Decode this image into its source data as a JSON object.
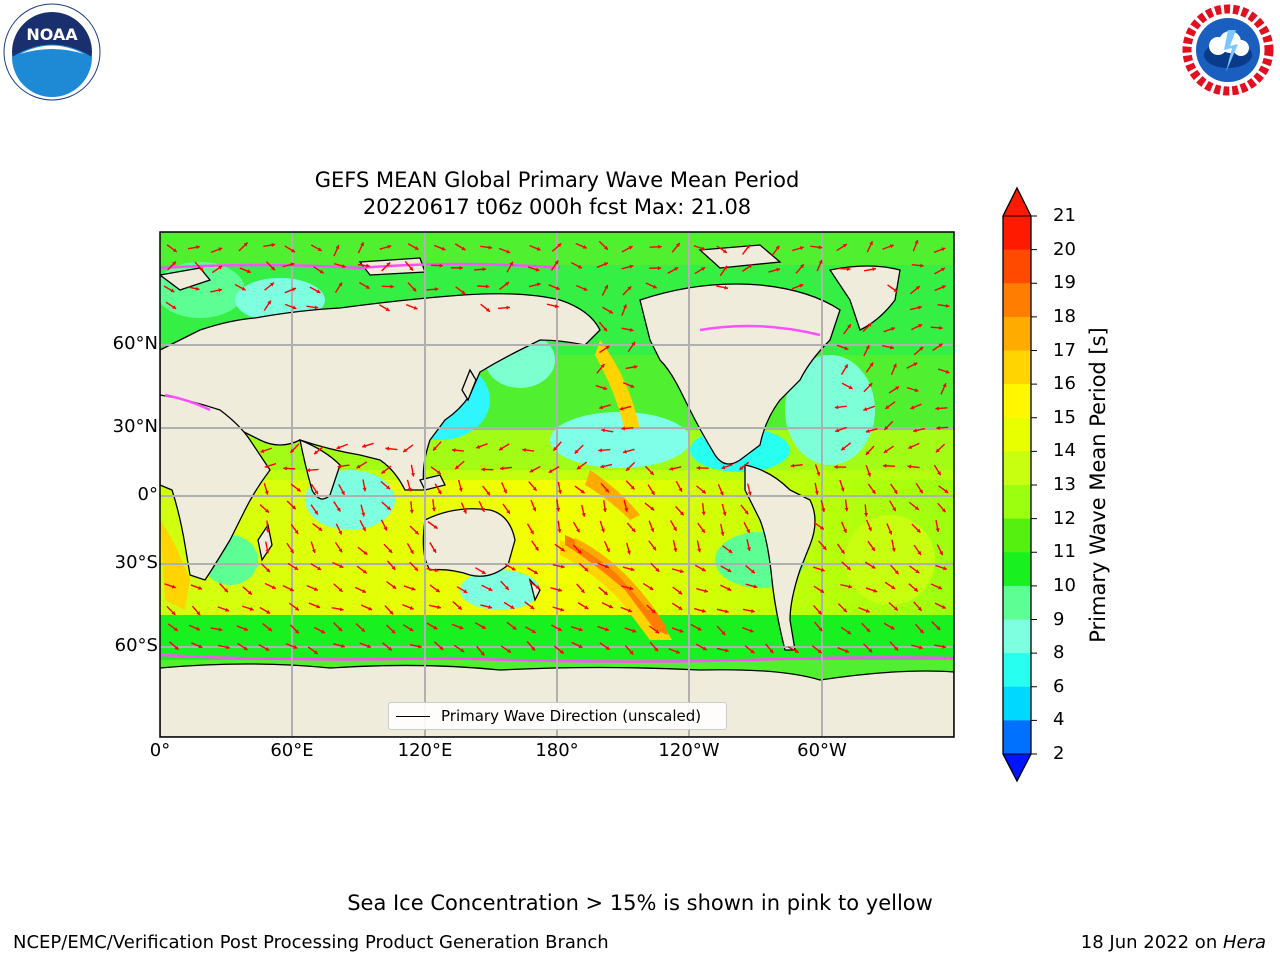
{
  "title_line1": "GEFS MEAN Global Primary Wave Mean Period",
  "title_line2": "20220617 t06z 000h fcst   Max: 21.08",
  "lat_labels": [
    "60°N",
    "30°N",
    "0°",
    "30°S",
    "60°S"
  ],
  "lon_labels": [
    "0°",
    "60°E",
    "120°E",
    "180°",
    "120°W",
    "60°W"
  ],
  "legend_text": "Primary Wave Direction (unscaled)",
  "colorbar": {
    "label": "Primary Wave Mean Period [s]",
    "ticks": [
      "21",
      "20",
      "19",
      "18",
      "17",
      "16",
      "15",
      "14",
      "13",
      "12",
      "11",
      "10",
      "9",
      "8",
      "6",
      "4",
      "2"
    ],
    "colors": [
      "#ff1a00",
      "#ff4a00",
      "#ff7d00",
      "#ffab00",
      "#ffd400",
      "#fff700",
      "#e8ff00",
      "#c8ff10",
      "#9cff10",
      "#55f010",
      "#18f020",
      "#5dff95",
      "#7dffe0",
      "#27fff0",
      "#00d8ff",
      "#0070ff",
      "#0015ff"
    ]
  },
  "footer": "Sea Ice Concentration > 15% is shown in pink to yellow",
  "credit": "NCEP/EMC/Verification Post Processing Product Generation Branch",
  "date_prefix": "18 Jun 2022 on ",
  "date_host": "Hera",
  "logos": {
    "left": "NOAA",
    "right": "NATIONAL WEATHER SERVICE"
  },
  "colors": {
    "land": "#efecdc",
    "arrow": "#ff0000",
    "grid": "#b0b0b0",
    "ice_edge": "#ff50ff"
  }
}
